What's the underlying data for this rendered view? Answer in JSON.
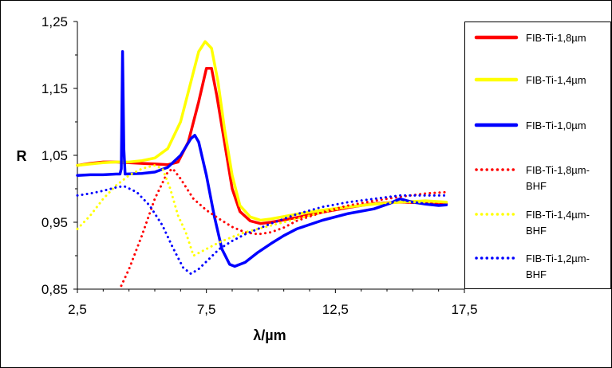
{
  "chart_data": {
    "type": "line",
    "xlabel": "λ/µm",
    "ylabel": "R",
    "xlim": [
      2.5,
      17.5
    ],
    "ylim": [
      0.85,
      1.25
    ],
    "x_ticks": [
      "2,5",
      "7,5",
      "12,5",
      "17,5"
    ],
    "y_ticks": [
      "0,85",
      "0,95",
      "1,05",
      "1,15",
      "1,25"
    ],
    "grid": false,
    "legend_position": "right",
    "series": [
      {
        "name": "FIB-Ti-1,8µm",
        "color": "#ff0000",
        "style": "solid",
        "points": [
          [
            2.5,
            1.035
          ],
          [
            3.0,
            1.038
          ],
          [
            3.5,
            1.04
          ],
          [
            4.0,
            1.04
          ],
          [
            4.5,
            1.039
          ],
          [
            5.0,
            1.038
          ],
          [
            5.5,
            1.037
          ],
          [
            6.0,
            1.036
          ],
          [
            6.4,
            1.04
          ],
          [
            6.8,
            1.07
          ],
          [
            7.2,
            1.13
          ],
          [
            7.5,
            1.18
          ],
          [
            7.7,
            1.18
          ],
          [
            7.9,
            1.14
          ],
          [
            8.2,
            1.07
          ],
          [
            8.5,
            1.0
          ],
          [
            8.8,
            0.966
          ],
          [
            9.2,
            0.952
          ],
          [
            9.6,
            0.948
          ],
          [
            10.0,
            0.95
          ],
          [
            11.0,
            0.957
          ],
          [
            12.0,
            0.965
          ],
          [
            13.0,
            0.972
          ],
          [
            14.0,
            0.978
          ],
          [
            15.0,
            0.98
          ],
          [
            16.0,
            0.979
          ],
          [
            16.8,
            0.977
          ]
        ]
      },
      {
        "name": "FIB-Ti-1,4µm",
        "color": "#ffff00",
        "style": "solid",
        "points": [
          [
            2.5,
            1.035
          ],
          [
            3.0,
            1.037
          ],
          [
            3.5,
            1.039
          ],
          [
            4.0,
            1.04
          ],
          [
            4.5,
            1.04
          ],
          [
            5.0,
            1.042
          ],
          [
            5.5,
            1.046
          ],
          [
            6.0,
            1.06
          ],
          [
            6.5,
            1.1
          ],
          [
            6.9,
            1.16
          ],
          [
            7.2,
            1.205
          ],
          [
            7.45,
            1.22
          ],
          [
            7.7,
            1.21
          ],
          [
            7.95,
            1.16
          ],
          [
            8.2,
            1.09
          ],
          [
            8.5,
            1.02
          ],
          [
            8.8,
            0.975
          ],
          [
            9.2,
            0.958
          ],
          [
            9.6,
            0.953
          ],
          [
            10.0,
            0.955
          ],
          [
            11.0,
            0.962
          ],
          [
            12.0,
            0.968
          ],
          [
            13.0,
            0.973
          ],
          [
            14.0,
            0.977
          ],
          [
            15.0,
            0.98
          ],
          [
            16.0,
            0.982
          ],
          [
            16.8,
            0.98
          ]
        ]
      },
      {
        "name": "FIB-Ti-1,0µm",
        "color": "#0000ff",
        "style": "solid",
        "points": [
          [
            2.5,
            1.02
          ],
          [
            3.0,
            1.021
          ],
          [
            3.5,
            1.021
          ],
          [
            4.0,
            1.022
          ],
          [
            4.15,
            1.022
          ],
          [
            4.2,
            1.03
          ],
          [
            4.25,
            1.205
          ],
          [
            4.3,
            1.06
          ],
          [
            4.35,
            1.022
          ],
          [
            5.0,
            1.023
          ],
          [
            5.5,
            1.025
          ],
          [
            6.0,
            1.032
          ],
          [
            6.5,
            1.05
          ],
          [
            6.9,
            1.075
          ],
          [
            7.05,
            1.08
          ],
          [
            7.2,
            1.07
          ],
          [
            7.5,
            1.02
          ],
          [
            7.8,
            0.96
          ],
          [
            8.1,
            0.91
          ],
          [
            8.4,
            0.887
          ],
          [
            8.6,
            0.884
          ],
          [
            9.0,
            0.89
          ],
          [
            9.5,
            0.905
          ],
          [
            10.0,
            0.918
          ],
          [
            10.5,
            0.93
          ],
          [
            11.0,
            0.94
          ],
          [
            12.0,
            0.953
          ],
          [
            13.0,
            0.963
          ],
          [
            14.0,
            0.97
          ],
          [
            14.6,
            0.978
          ],
          [
            15.0,
            0.985
          ],
          [
            15.5,
            0.98
          ],
          [
            16.0,
            0.977
          ],
          [
            16.5,
            0.975
          ],
          [
            16.8,
            0.976
          ]
        ]
      },
      {
        "name": "FIB-Ti-1,8µm-BHF",
        "color": "#ff0000",
        "style": "dotted",
        "points": [
          [
            4.2,
            0.855
          ],
          [
            4.5,
            0.88
          ],
          [
            5.0,
            0.93
          ],
          [
            5.5,
            0.985
          ],
          [
            6.0,
            1.025
          ],
          [
            6.2,
            1.03
          ],
          [
            6.5,
            1.015
          ],
          [
            7.0,
            0.985
          ],
          [
            7.5,
            0.968
          ],
          [
            8.0,
            0.955
          ],
          [
            8.5,
            0.943
          ],
          [
            9.0,
            0.935
          ],
          [
            9.5,
            0.932
          ],
          [
            10.0,
            0.935
          ],
          [
            10.5,
            0.942
          ],
          [
            11.0,
            0.952
          ],
          [
            12.0,
            0.965
          ],
          [
            13.0,
            0.975
          ],
          [
            14.0,
            0.982
          ],
          [
            15.0,
            0.988
          ],
          [
            16.0,
            0.993
          ],
          [
            16.8,
            0.995
          ]
        ]
      },
      {
        "name": "FIB-Ti-1,4µm-BHF",
        "color": "#ffff00",
        "style": "dotted",
        "points": [
          [
            2.5,
            0.94
          ],
          [
            3.0,
            0.96
          ],
          [
            3.5,
            0.985
          ],
          [
            4.0,
            1.005
          ],
          [
            4.5,
            1.02
          ],
          [
            5.0,
            1.03
          ],
          [
            5.5,
            1.035
          ],
          [
            5.8,
            1.03
          ],
          [
            6.1,
            1.0
          ],
          [
            6.4,
            0.96
          ],
          [
            6.7,
            0.935
          ],
          [
            7.0,
            0.9
          ],
          [
            7.5,
            0.91
          ],
          [
            8.0,
            0.92
          ],
          [
            8.5,
            0.928
          ],
          [
            9.0,
            0.935
          ],
          [
            10.0,
            0.945
          ],
          [
            11.0,
            0.955
          ],
          [
            12.0,
            0.965
          ],
          [
            13.0,
            0.973
          ],
          [
            14.0,
            0.978
          ],
          [
            15.0,
            0.98
          ],
          [
            16.0,
            0.98
          ],
          [
            16.8,
            0.98
          ]
        ]
      },
      {
        "name": "FIB-Ti-1,2µm-BHF",
        "color": "#0000ff",
        "style": "dotted",
        "points": [
          [
            2.5,
            0.99
          ],
          [
            3.0,
            0.993
          ],
          [
            3.5,
            0.997
          ],
          [
            4.0,
            1.002
          ],
          [
            4.3,
            1.004
          ],
          [
            4.8,
            0.995
          ],
          [
            5.3,
            0.975
          ],
          [
            5.8,
            0.945
          ],
          [
            6.2,
            0.912
          ],
          [
            6.6,
            0.882
          ],
          [
            6.9,
            0.873
          ],
          [
            7.2,
            0.88
          ],
          [
            7.6,
            0.895
          ],
          [
            8.0,
            0.91
          ],
          [
            8.5,
            0.922
          ],
          [
            9.0,
            0.932
          ],
          [
            9.5,
            0.94
          ],
          [
            10.0,
            0.948
          ],
          [
            11.0,
            0.962
          ],
          [
            12.0,
            0.973
          ],
          [
            13.0,
            0.98
          ],
          [
            14.0,
            0.985
          ],
          [
            15.0,
            0.99
          ],
          [
            16.0,
            0.99
          ],
          [
            16.8,
            0.99
          ]
        ]
      }
    ]
  }
}
